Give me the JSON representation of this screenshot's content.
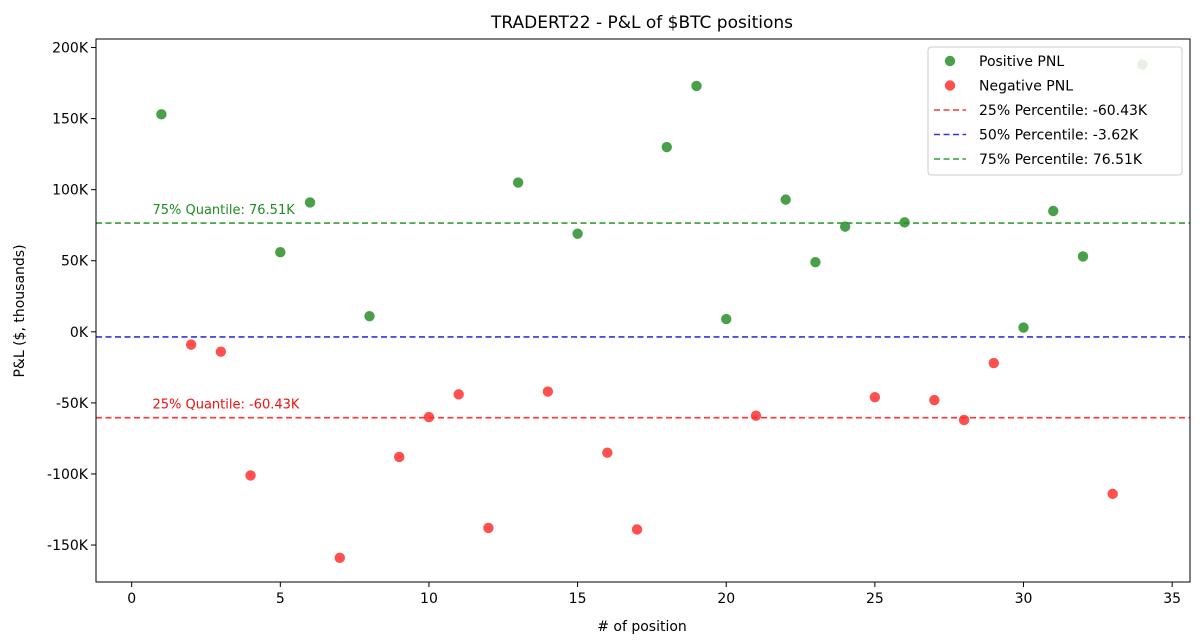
{
  "chart_data": {
    "type": "scatter",
    "title": "TRADERT22 - P&L of $BTC positions",
    "xlabel": "# of position",
    "ylabel": "P&L ($, thousands)",
    "xlim": [
      -1.2,
      35.6
    ],
    "ylim": [
      -176,
      206
    ],
    "x_ticks": [
      0,
      5,
      10,
      15,
      20,
      25,
      30,
      35
    ],
    "x_tick_labels": [
      "0",
      "5",
      "10",
      "15",
      "20",
      "25",
      "30",
      "35"
    ],
    "y_ticks": [
      -150,
      -100,
      -50,
      0,
      50,
      100,
      150,
      200
    ],
    "y_tick_labels": [
      "-150K",
      "-100K",
      "-50K",
      "0K",
      "50K",
      "100K",
      "150K",
      "200K"
    ],
    "grid": false,
    "legend_position": "top-right",
    "series": [
      {
        "name": "Positive PNL",
        "color": "#228b22",
        "points": [
          {
            "x": 1,
            "y": 153
          },
          {
            "x": 5,
            "y": 56
          },
          {
            "x": 6,
            "y": 91
          },
          {
            "x": 8,
            "y": 11
          },
          {
            "x": 13,
            "y": 105
          },
          {
            "x": 15,
            "y": 69
          },
          {
            "x": 18,
            "y": 130
          },
          {
            "x": 19,
            "y": 173
          },
          {
            "x": 20,
            "y": 9
          },
          {
            "x": 22,
            "y": 93
          },
          {
            "x": 23,
            "y": 49
          },
          {
            "x": 24,
            "y": 74
          },
          {
            "x": 26,
            "y": 77
          },
          {
            "x": 30,
            "y": 3
          },
          {
            "x": 31,
            "y": 85
          },
          {
            "x": 32,
            "y": 53
          },
          {
            "x": 34,
            "y": 188
          }
        ]
      },
      {
        "name": "Negative PNL",
        "color": "#ff2a2a",
        "points": [
          {
            "x": 2,
            "y": -9
          },
          {
            "x": 3,
            "y": -14
          },
          {
            "x": 4,
            "y": -101
          },
          {
            "x": 7,
            "y": -159
          },
          {
            "x": 9,
            "y": -88
          },
          {
            "x": 10,
            "y": -60
          },
          {
            "x": 11,
            "y": -44
          },
          {
            "x": 12,
            "y": -138
          },
          {
            "x": 14,
            "y": -42
          },
          {
            "x": 16,
            "y": -85
          },
          {
            "x": 17,
            "y": -139
          },
          {
            "x": 21,
            "y": -59
          },
          {
            "x": 25,
            "y": -46
          },
          {
            "x": 27,
            "y": -48
          },
          {
            "x": 28,
            "y": -62
          },
          {
            "x": 29,
            "y": -22
          },
          {
            "x": 33,
            "y": -114
          }
        ]
      }
    ],
    "reference_lines": [
      {
        "name": "25% Percentile: -60.43K",
        "value": -60.43,
        "color": "#ff3333"
      },
      {
        "name": "50% Percentile: -3.62K",
        "value": -3.62,
        "color": "#3333dd"
      },
      {
        "name": "75% Percentile: 76.51K",
        "value": 76.51,
        "color": "#33a033"
      }
    ],
    "annotations": [
      {
        "text": "75% Quantile: 76.51K",
        "x": 0.7,
        "y": 76.51,
        "color": "#228b22"
      },
      {
        "text": "25% Quantile: -60.43K",
        "x": 0.7,
        "y": -60.43,
        "color": "#ee1111"
      }
    ]
  }
}
